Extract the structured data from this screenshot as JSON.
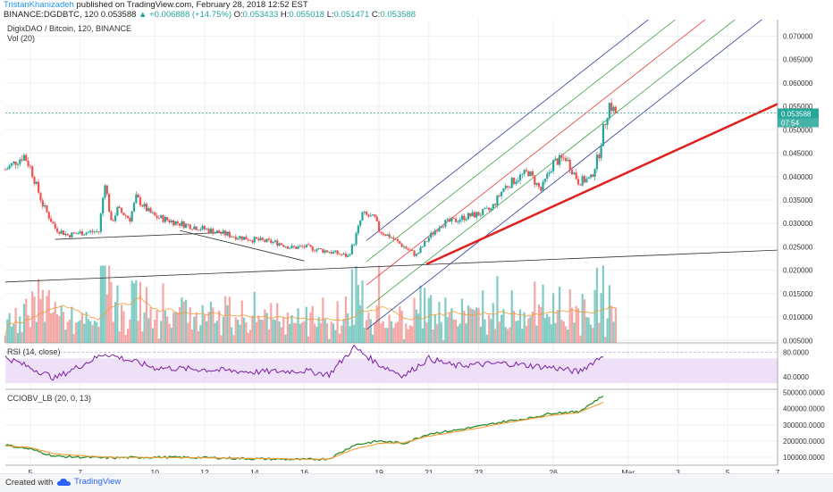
{
  "header": {
    "author": "TristanKhanizadeh",
    "published": "published on TradingView.com, February 28, 2018 12:52 EST",
    "symbol_line": "BINANCE:DGDBTC, 120",
    "last": "0.053588",
    "change": "+0.006888 (+14.75%)",
    "o_label": "O:",
    "o_value": "0.053433",
    "h_label": "H:",
    "h_value": "0.055018",
    "l_label": "L:",
    "l_value": "0.051471",
    "c_label": "C:",
    "c_value": "0.053588"
  },
  "legends": {
    "main": "DigixDAO / Bitcoin, 120, BINANCE",
    "vol": "Vol (20)",
    "rsi": "RSI (14, close)",
    "cci": "CCIOBV_LB (20, 0, 13)"
  },
  "price_badge": {
    "value": "0.053588",
    "timer": "07:54"
  },
  "footer": {
    "created": "Created with",
    "brand": "TradingView"
  },
  "colors": {
    "up": "#26a69a",
    "down": "#ef5350",
    "upvol": "#80cbc4",
    "downvol": "#f4a7a5",
    "channel_outer": "#2f3d9a",
    "channel_mid": "#43a047",
    "channel_center": "#e53935",
    "support": "#e0201d",
    "rsi": "#7b1fa2",
    "rsi_band": "#ede0f7",
    "cci_green": "#2e8b2e",
    "cci_orange": "#f39c33",
    "vol_ma": "#f39c33"
  },
  "chart_data": [
    {
      "type": "candlestick",
      "title": "DigixDAO / Bitcoin, 120, BINANCE",
      "ylim": [
        0.0045,
        0.0735
      ],
      "yticks": [
        "0.070000",
        "0.065000",
        "0.060000",
        "0.055000",
        "0.050000",
        "0.045000",
        "0.040000",
        "0.035000",
        "0.030000",
        "0.025000",
        "0.020000",
        "0.015000",
        "0.010000",
        "0.005000"
      ],
      "xticks": [
        "5",
        "7",
        "10",
        "12",
        "14",
        "16",
        "19",
        "21",
        "23",
        "26",
        "Mar",
        "3",
        "5",
        "7"
      ],
      "x_range_days": [
        "Feb 4 2018",
        "Mar 7 2018"
      ],
      "close_series": [
        {
          "x": "Feb 4",
          "y": 0.0415
        },
        {
          "x": "Feb 4 18:00",
          "y": 0.0445
        },
        {
          "x": "Feb 5",
          "y": 0.042
        },
        {
          "x": "Feb 5 12:00",
          "y": 0.034
        },
        {
          "x": "Feb 6",
          "y": 0.029
        },
        {
          "x": "Feb 6 12:00",
          "y": 0.0275
        },
        {
          "x": "Feb 7",
          "y": 0.028
        },
        {
          "x": "Feb 7 18:00",
          "y": 0.0283
        },
        {
          "x": "Feb 8",
          "y": 0.039
        },
        {
          "x": "Feb 8 06:00",
          "y": 0.03
        },
        {
          "x": "Feb 8 12:00",
          "y": 0.033
        },
        {
          "x": "Feb 9",
          "y": 0.031
        },
        {
          "x": "Feb 9 06:00",
          "y": 0.0355
        },
        {
          "x": "Feb 9 18:00",
          "y": 0.0325
        },
        {
          "x": "Feb 10",
          "y": 0.0315
        },
        {
          "x": "Feb 11",
          "y": 0.03
        },
        {
          "x": "Feb 12",
          "y": 0.0288
        },
        {
          "x": "Feb 13",
          "y": 0.0275
        },
        {
          "x": "Feb 14",
          "y": 0.0265
        },
        {
          "x": "Feb 15",
          "y": 0.0258
        },
        {
          "x": "Feb 15 12:00",
          "y": 0.0248
        },
        {
          "x": "Feb 16",
          "y": 0.025
        },
        {
          "x": "Feb 17",
          "y": 0.024
        },
        {
          "x": "Feb 17 18:00",
          "y": 0.023
        },
        {
          "x": "Feb 18",
          "y": 0.026
        },
        {
          "x": "Feb 18 08:00",
          "y": 0.032
        },
        {
          "x": "Feb 18 20:00",
          "y": 0.031
        },
        {
          "x": "Feb 19",
          "y": 0.0285
        },
        {
          "x": "Feb 19 12:00",
          "y": 0.027
        },
        {
          "x": "Feb 20",
          "y": 0.025
        },
        {
          "x": "Feb 20 12:00",
          "y": 0.0232
        },
        {
          "x": "Feb 21",
          "y": 0.027
        },
        {
          "x": "Feb 21 12:00",
          "y": 0.03
        },
        {
          "x": "Feb 22",
          "y": 0.0305
        },
        {
          "x": "Feb 22 12:00",
          "y": 0.0315
        },
        {
          "x": "Feb 23",
          "y": 0.032
        },
        {
          "x": "Feb 23 12:00",
          "y": 0.033
        },
        {
          "x": "Feb 24",
          "y": 0.0375
        },
        {
          "x": "Feb 24 12:00",
          "y": 0.0395
        },
        {
          "x": "Feb 25",
          "y": 0.041
        },
        {
          "x": "Feb 25 12:00",
          "y": 0.037
        },
        {
          "x": "Feb 26",
          "y": 0.043
        },
        {
          "x": "Feb 26 12:00",
          "y": 0.044
        },
        {
          "x": "Feb 27",
          "y": 0.039
        },
        {
          "x": "Feb 27 12:00",
          "y": 0.0395
        },
        {
          "x": "Feb 27 20:00",
          "y": 0.045
        },
        {
          "x": "Feb 28",
          "y": 0.05
        },
        {
          "x": "Feb 28 06:00",
          "y": 0.0555
        },
        {
          "x": "Feb 28 12:00",
          "y": 0.0536
        }
      ],
      "last_price": 0.053588
    },
    {
      "type": "bar",
      "title": "Vol (20)",
      "note": "volume panel shares the price axis scale",
      "ylim": [
        0.0045,
        0.0735
      ]
    },
    {
      "type": "line",
      "title": "RSI (14, close)",
      "yticks": [
        "80.0000",
        "40.0000"
      ],
      "ylim": [
        20,
        95
      ],
      "band": [
        30,
        70
      ],
      "series": [
        {
          "name": "RSI",
          "x": [
            "Feb 4",
            "Feb 6",
            "Feb 8",
            "Feb 10",
            "Feb 12",
            "Feb 14",
            "Feb 16",
            "Feb 17",
            "Feb 18",
            "Feb 19",
            "Feb 20",
            "Feb 21",
            "Feb 22",
            "Feb 24",
            "Feb 26",
            "Feb 27",
            "Feb 28"
          ],
          "values": [
            72,
            38,
            78,
            55,
            52,
            48,
            50,
            44,
            88,
            60,
            42,
            70,
            58,
            62,
            55,
            48,
            75
          ]
        }
      ]
    },
    {
      "type": "line",
      "title": "CCIOBV_LB (20, 0, 13)",
      "yticks": [
        "500000.0000",
        "400000.0000",
        "300000.0000",
        "200000.0000",
        "100000.0000"
      ],
      "ylim": [
        50000,
        520000
      ],
      "series": [
        {
          "name": "CCIOBV",
          "x": [
            "Feb 4",
            "Feb 5",
            "Feb 6",
            "Feb 8",
            "Feb 10",
            "Feb 12",
            "Feb 14",
            "Feb 16",
            "Feb 17",
            "Feb 18",
            "Feb 19",
            "Feb 20",
            "Feb 21",
            "Feb 22",
            "Feb 23",
            "Feb 24",
            "Feb 25",
            "Feb 26",
            "Feb 27",
            "Feb 28"
          ],
          "values": [
            175000,
            150000,
            105000,
            95000,
            100000,
            97000,
            90000,
            85000,
            90000,
            175000,
            200000,
            185000,
            245000,
            265000,
            290000,
            320000,
            340000,
            375000,
            380000,
            480000
          ]
        },
        {
          "name": "Signal",
          "x": [
            "Feb 4",
            "Feb 5",
            "Feb 6",
            "Feb 8",
            "Feb 10",
            "Feb 12",
            "Feb 14",
            "Feb 16",
            "Feb 17",
            "Feb 18",
            "Feb 19",
            "Feb 20",
            "Feb 21",
            "Feb 22",
            "Feb 23",
            "Feb 24",
            "Feb 25",
            "Feb 26",
            "Feb 27",
            "Feb 28"
          ],
          "values": [
            170000,
            160000,
            120000,
            100000,
            98000,
            96000,
            92000,
            88000,
            88000,
            150000,
            185000,
            190000,
            230000,
            255000,
            280000,
            310000,
            335000,
            360000,
            375000,
            440000
          ]
        }
      ]
    }
  ]
}
